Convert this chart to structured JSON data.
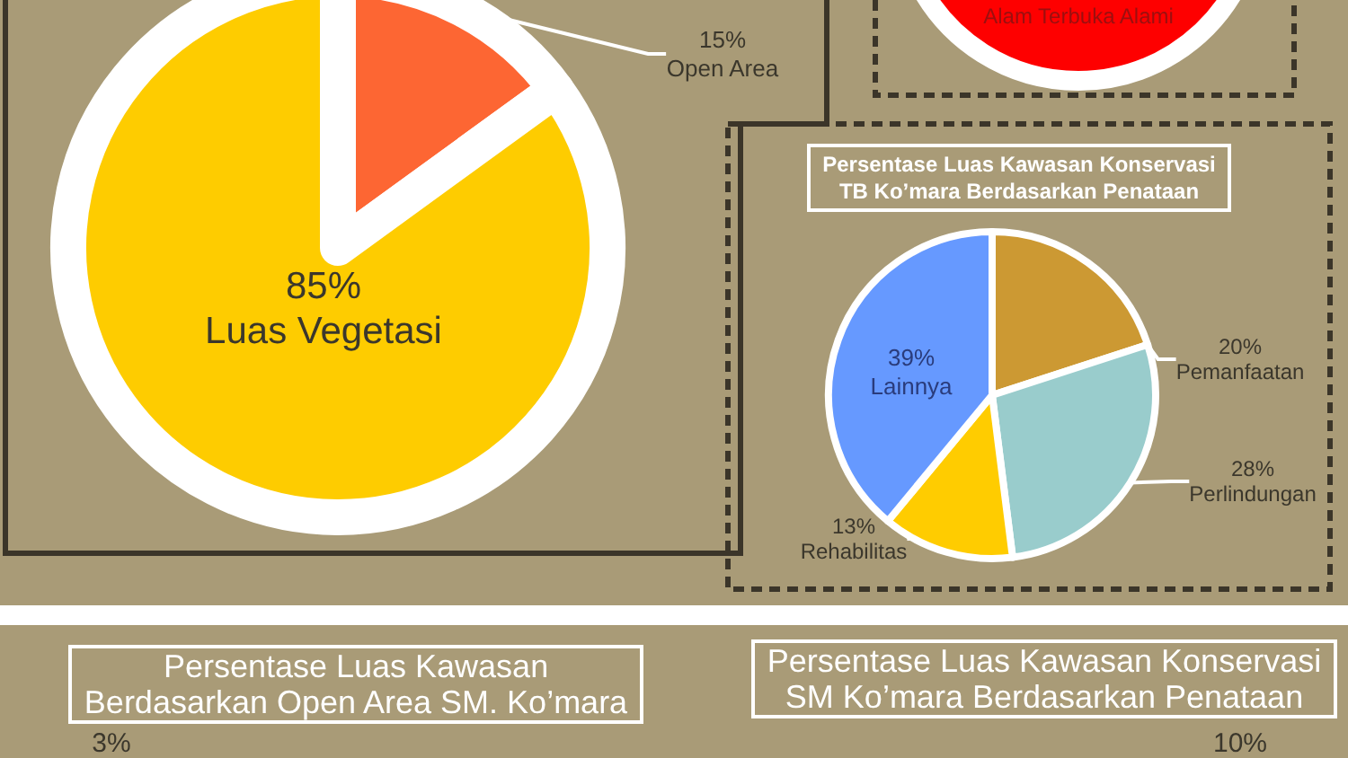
{
  "chart_data": [
    {
      "type": "pie",
      "categories": [
        "Open Area",
        "Luas Vegetasi"
      ],
      "values": [
        15,
        85
      ],
      "colors": [
        "#fd6633",
        "#fecc00"
      ],
      "value_labels": [
        "15%",
        "85%"
      ]
    },
    {
      "type": "pie",
      "categories": [
        "Alam Terbuka Alami"
      ],
      "values": [
        100
      ],
      "colors": [
        "#fe0000"
      ]
    },
    {
      "type": "pie",
      "title": "Persentase Luas Kawasan Konservasi TB Ko’mara Berdasarkan Penataan",
      "categories": [
        "Pemanfaatan",
        "Perlindungan",
        "Rehabilitas",
        "Lainnya"
      ],
      "values": [
        20,
        28,
        13,
        39
      ],
      "colors": [
        "#cc9933",
        "#99cccc",
        "#ffcc00",
        "#6699ff"
      ],
      "value_labels": [
        "20%",
        "28%",
        "13%",
        "39%"
      ]
    },
    {
      "type": "other",
      "title": "Persentase Luas Kawasan Berdasarkan Open Area SM. Ko’mara",
      "annotations": [
        "3%"
      ]
    },
    {
      "type": "other",
      "title": "Persentase Luas Kawasan Konservasi SM Ko’mara Berdasarkan Penataan",
      "annotations": [
        "10%"
      ]
    }
  ]
}
